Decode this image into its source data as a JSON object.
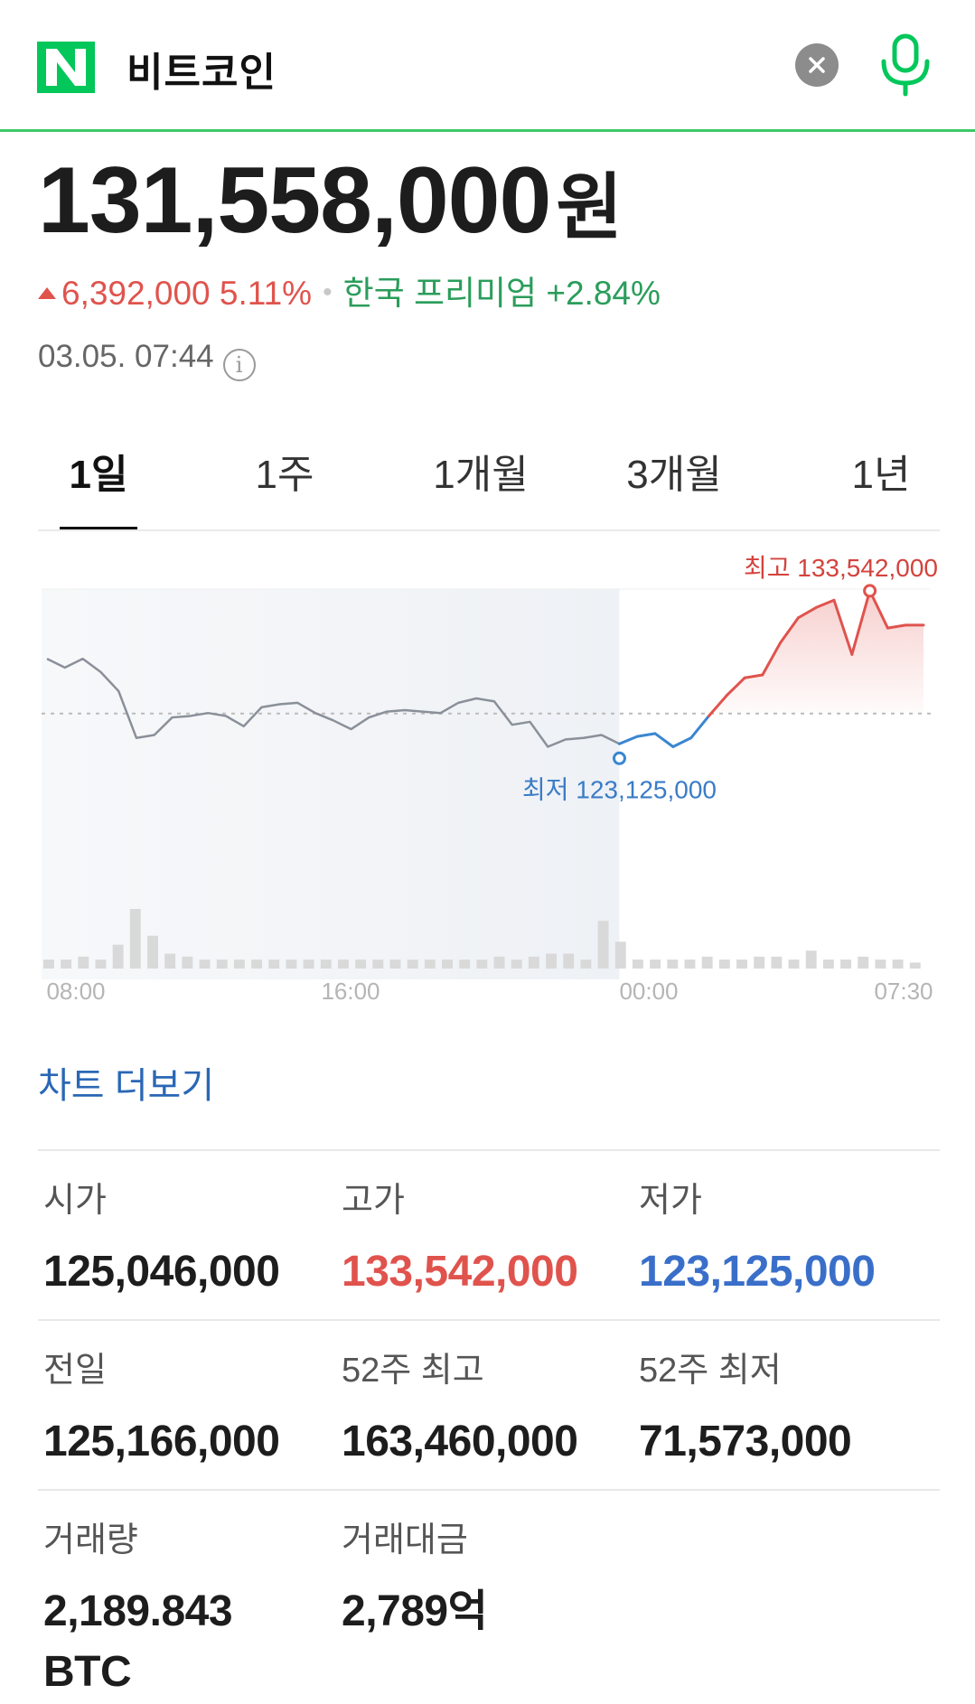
{
  "header": {
    "search_query": "비트코인",
    "icons": {
      "logo": "naver-n-logo",
      "clear": "close-icon",
      "mic": "microphone-icon"
    },
    "accent_color": "#03c75a"
  },
  "quote": {
    "price": "131,558,000",
    "unit": "원",
    "change": "6,392,000 5.11%",
    "premium_label": "한국 프리미엄 +2.84%",
    "timestamp": "03.05. 07:44"
  },
  "tabs": [
    {
      "label": "1일",
      "active": true
    },
    {
      "label": "1주",
      "active": false
    },
    {
      "label": "1개월",
      "active": false
    },
    {
      "label": "3개월",
      "active": false
    },
    {
      "label": "1년",
      "active": false
    }
  ],
  "chart_data": {
    "type": "line",
    "x_tick_labels": [
      "08:00",
      "16:00",
      "00:00",
      "07:30"
    ],
    "ylim": [
      118000000,
      136000000
    ],
    "reference_value": 125166000,
    "high_label": "최고 133,542,000",
    "low_label": "최저 123,125,000",
    "high_value": 133542000,
    "low_value": 123125000,
    "colors": {
      "past": "#8a9099",
      "up": "#e0534d",
      "down": "#3a86d1",
      "volume": "#d9d9d9"
    },
    "series": [
      {
        "values": [
          128900000,
          128300000,
          128900000,
          128000000,
          126700000,
          123500000,
          123700000,
          124900000,
          125000000,
          125200000,
          125000000,
          124300000,
          125600000,
          125800000,
          125900000,
          125200000,
          124700000,
          124100000,
          124900000,
          125300000,
          125400000,
          125300000,
          125200000,
          125900000,
          126200000,
          126000000,
          124400000,
          124600000,
          122900000,
          123400000,
          123500000,
          123700000,
          123100000
        ]
      },
      {
        "values": [
          123100000,
          123600000,
          123800000,
          122900000,
          123500000,
          125000000,
          126400000,
          127600000,
          127800000,
          130000000,
          131700000,
          132400000,
          132900000,
          129200000,
          133540000,
          131000000,
          131200000,
          131200000
        ]
      }
    ],
    "volume": [
      3,
      3,
      4,
      3,
      8,
      20,
      11,
      5,
      4,
      3,
      3,
      3,
      3,
      3,
      3,
      3,
      3,
      3,
      3,
      3,
      3,
      3,
      3,
      3,
      3,
      3,
      4,
      3,
      4,
      5,
      5,
      3,
      16,
      9,
      3,
      3,
      3,
      3,
      4,
      3,
      3,
      4,
      4,
      3,
      6,
      3,
      3,
      4,
      3,
      3,
      2
    ]
  },
  "more_link": "차트 더보기",
  "stats": [
    {
      "label": "시가",
      "value": "125,046,000",
      "tone": "normal"
    },
    {
      "label": "고가",
      "value": "133,542,000",
      "tone": "red"
    },
    {
      "label": "저가",
      "value": "123,125,000",
      "tone": "blue"
    },
    {
      "label": "전일",
      "value": "125,166,000",
      "tone": "normal"
    },
    {
      "label": "52주 최고",
      "value": "163,460,000",
      "tone": "normal"
    },
    {
      "label": "52주 최저",
      "value": "71,573,000",
      "tone": "normal"
    },
    {
      "label": "거래량",
      "value": "2,189.843 BTC",
      "tone": "normal"
    },
    {
      "label": "거래대금",
      "value": "2,789억",
      "tone": "normal"
    }
  ]
}
